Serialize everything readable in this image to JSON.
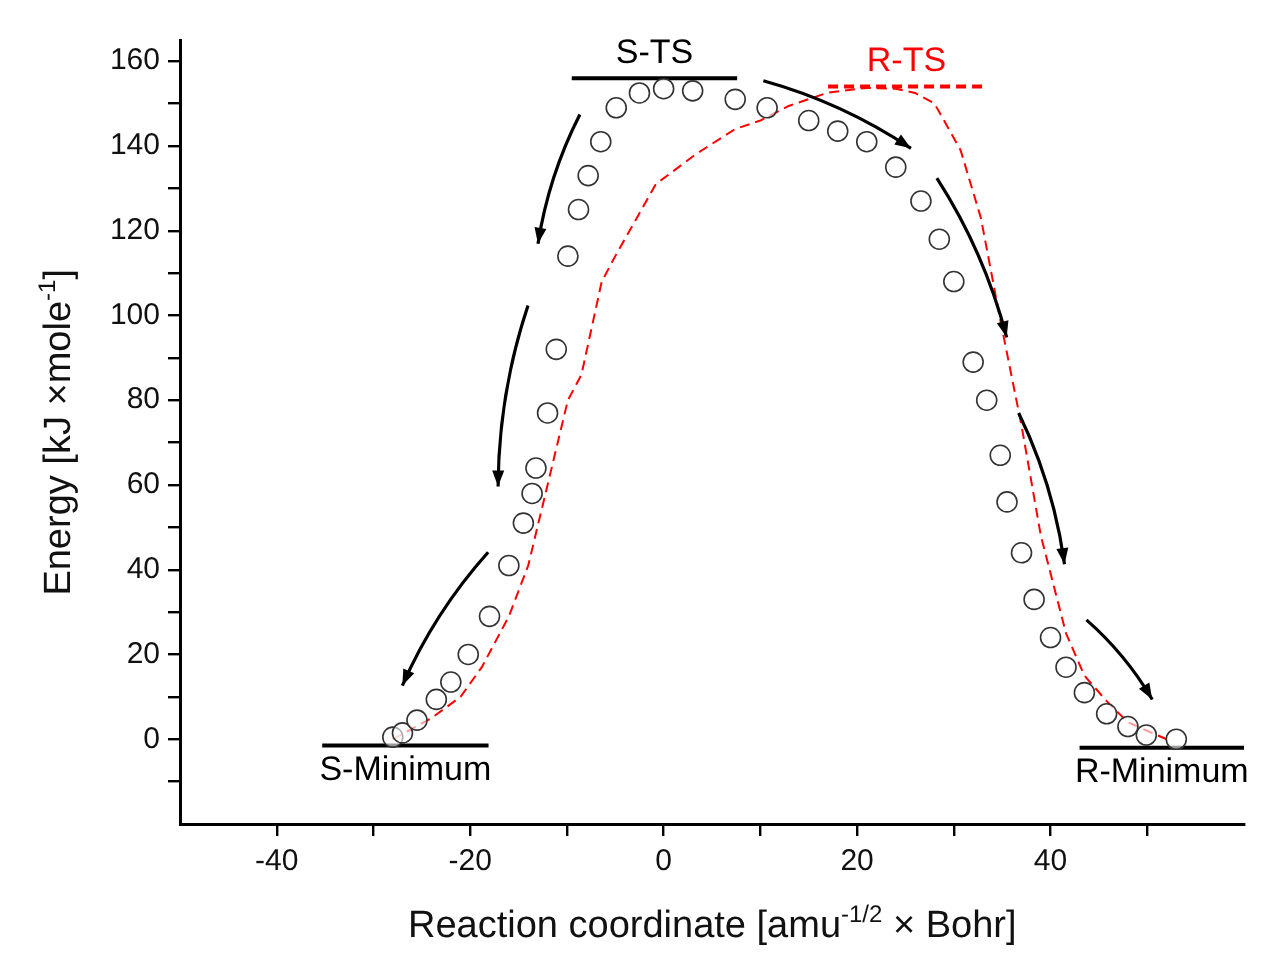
{
  "chart_data": {
    "type": "scatter",
    "xlabel": "Reaction coordinate [amu$^{-1/2}$ × Bohr]",
    "ylabel": "Energy [kJ ×mole$^{-1}$]",
    "xlim": [
      -50,
      60
    ],
    "ylim": [
      -20,
      165
    ],
    "xticks": [
      -40,
      {
        "value": -30,
        "label": null
      },
      -20,
      {
        "value": -10,
        "label": null
      },
      0,
      {
        "value": 10,
        "label": null
      },
      20,
      {
        "value": 30,
        "label": null
      },
      40,
      {
        "value": 50,
        "label": null
      }
    ],
    "yticks": [
      {
        "value": -10,
        "label": null
      },
      0,
      {
        "value": 10,
        "label": null
      },
      20,
      {
        "value": 30,
        "label": null
      },
      40,
      {
        "value": 50,
        "label": null
      },
      60,
      {
        "value": 70,
        "label": null
      },
      80,
      {
        "value": 90,
        "label": null
      },
      100,
      {
        "value": 110,
        "label": null
      },
      120,
      {
        "value": 130,
        "label": null
      },
      140,
      {
        "value": 150,
        "label": null
      },
      160
    ],
    "grid": false,
    "legend": false,
    "series": [
      {
        "color": "#333333",
        "marker": "circle",
        "x": [
          -28,
          -27,
          -25.5,
          -23.5,
          -22,
          -20.2,
          -18,
          -16,
          -14.5,
          -13.6,
          -13.2,
          -12,
          -11.1,
          -9.9,
          -8.8,
          -7.8,
          -6.5,
          -4.9,
          -2.5,
          0,
          3,
          7.4,
          10.7,
          15,
          18,
          21,
          24,
          26.6,
          28.5,
          30,
          32,
          33.4,
          34.8,
          35.5,
          37,
          38.3,
          40,
          41.6,
          43.5,
          45.8,
          48,
          49.9,
          53
        ],
        "values": [
          0.5,
          1.5,
          4.5,
          9.4,
          13.5,
          20,
          29,
          41,
          51,
          58,
          64,
          77,
          92,
          114,
          125,
          133,
          141,
          149,
          152.5,
          153.5,
          153,
          151,
          149,
          146,
          143.5,
          141,
          135,
          127,
          118,
          108,
          89,
          80,
          67,
          56,
          44,
          33,
          24,
          17,
          11,
          6,
          3,
          1,
          0
        ]
      },
      {
        "type": "line",
        "color": "#ff0000",
        "line_style": "dashed",
        "marker": "none",
        "x": [
          -28,
          -24,
          -21,
          -18.8,
          -16,
          -14,
          -12,
          -9.9,
          -8.5,
          -6.4,
          -5,
          -0.8,
          3.3,
          7.4,
          10,
          13,
          17,
          21,
          24,
          26,
          28,
          30.7,
          32.8,
          34.8,
          37,
          39,
          41.6,
          43.5,
          45.8,
          48,
          52
        ],
        "values": [
          0,
          5,
          10,
          17,
          29,
          41,
          60,
          80,
          86,
          108,
          114,
          131,
          138,
          144,
          146,
          149.5,
          152.6,
          153.7,
          153.5,
          152.5,
          150,
          139,
          123,
          99,
          74,
          48,
          25,
          15,
          9,
          4,
          0
        ]
      },
      {
        "type": "line",
        "name": "S-TS",
        "color": "#000000",
        "marker": "none",
        "x": [
          -9.5,
          7.6
        ],
        "values": [
          156,
          156
        ]
      },
      {
        "type": "line",
        "name": "R-TS",
        "color": "#ff0000",
        "line_style": "dashed",
        "marker": "none",
        "x": [
          17,
          33.2
        ],
        "values": [
          154,
          154
        ]
      },
      {
        "type": "line",
        "name": "S-Minimum",
        "color": "#000000",
        "marker": "none",
        "x": [
          -35.3,
          -18.1
        ],
        "values": [
          -1.5,
          -1.5
        ]
      },
      {
        "type": "line",
        "name": "R-Minimum",
        "color": "#000000",
        "marker": "none",
        "x": [
          43,
          60
        ],
        "values": [
          -2,
          -2
        ]
      }
    ]
  }
}
